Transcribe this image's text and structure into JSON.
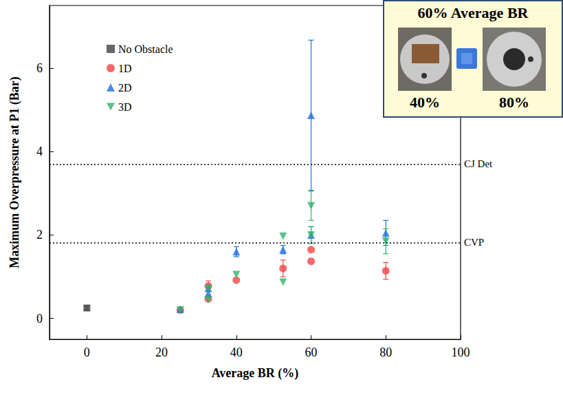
{
  "chart_data": {
    "type": "scatter",
    "x_label": "Average BR (%)",
    "y_label": "Maximum Overpressure at P1 (Bar)",
    "xlim": [
      -10,
      100
    ],
    "xticks": [
      0,
      20,
      40,
      60,
      80,
      100
    ],
    "ylim": [
      -0.5,
      7.5
    ],
    "yticks": [
      0,
      2,
      4,
      6
    ],
    "grid": false,
    "legend": "upper left",
    "series": [
      {
        "name": "No Obstacle",
        "color": "#404040",
        "marker": "square",
        "values": [
          [
            0,
            0.25
          ]
        ],
        "errors": [
          0.05
        ]
      },
      {
        "name": "1D",
        "color": "#f04545",
        "marker": "circle",
        "values": [
          [
            25,
            0.2
          ],
          [
            32.5,
            0.78
          ],
          [
            32.5,
            0.47
          ],
          [
            40,
            0.92
          ],
          [
            52.5,
            1.2
          ],
          [
            60,
            1.37
          ],
          [
            60,
            1.65
          ],
          [
            80,
            1.14
          ]
        ],
        "errors": [
          null,
          0.12,
          null,
          null,
          0.2,
          null,
          null,
          0.2
        ]
      },
      {
        "name": "2D",
        "color": "#1f6fe0",
        "marker": "triangle",
        "values": [
          [
            25,
            0.22
          ],
          [
            32.5,
            0.72
          ],
          [
            32.5,
            0.6
          ],
          [
            40,
            1.6
          ],
          [
            52.5,
            1.65
          ],
          [
            60,
            4.87
          ],
          [
            60,
            2.0
          ],
          [
            80,
            2.05
          ]
        ],
        "errors": [
          null,
          null,
          null,
          0.12,
          0.1,
          1.8,
          0.2,
          0.3
        ]
      },
      {
        "name": "3D",
        "color": "#2fb36a",
        "marker": "triangle_down",
        "values": [
          [
            25,
            0.2
          ],
          [
            32.5,
            0.45
          ],
          [
            32.5,
            0.72
          ],
          [
            40,
            1.05
          ],
          [
            52.5,
            1.97
          ],
          [
            52.5,
            0.87
          ],
          [
            60,
            2.7
          ],
          [
            60,
            2.0
          ],
          [
            80,
            1.85
          ]
        ],
        "errors": [
          null,
          null,
          null,
          null,
          null,
          null,
          0.35,
          0.2,
          0.3
        ]
      }
    ],
    "reference_lines": [
      {
        "value": 3.7,
        "label": "CJ Det"
      },
      {
        "value": 1.82,
        "label": "CVP"
      }
    ],
    "inset": {
      "title": "60% Average BR",
      "left_label": "40%",
      "right_label": "80%"
    }
  }
}
